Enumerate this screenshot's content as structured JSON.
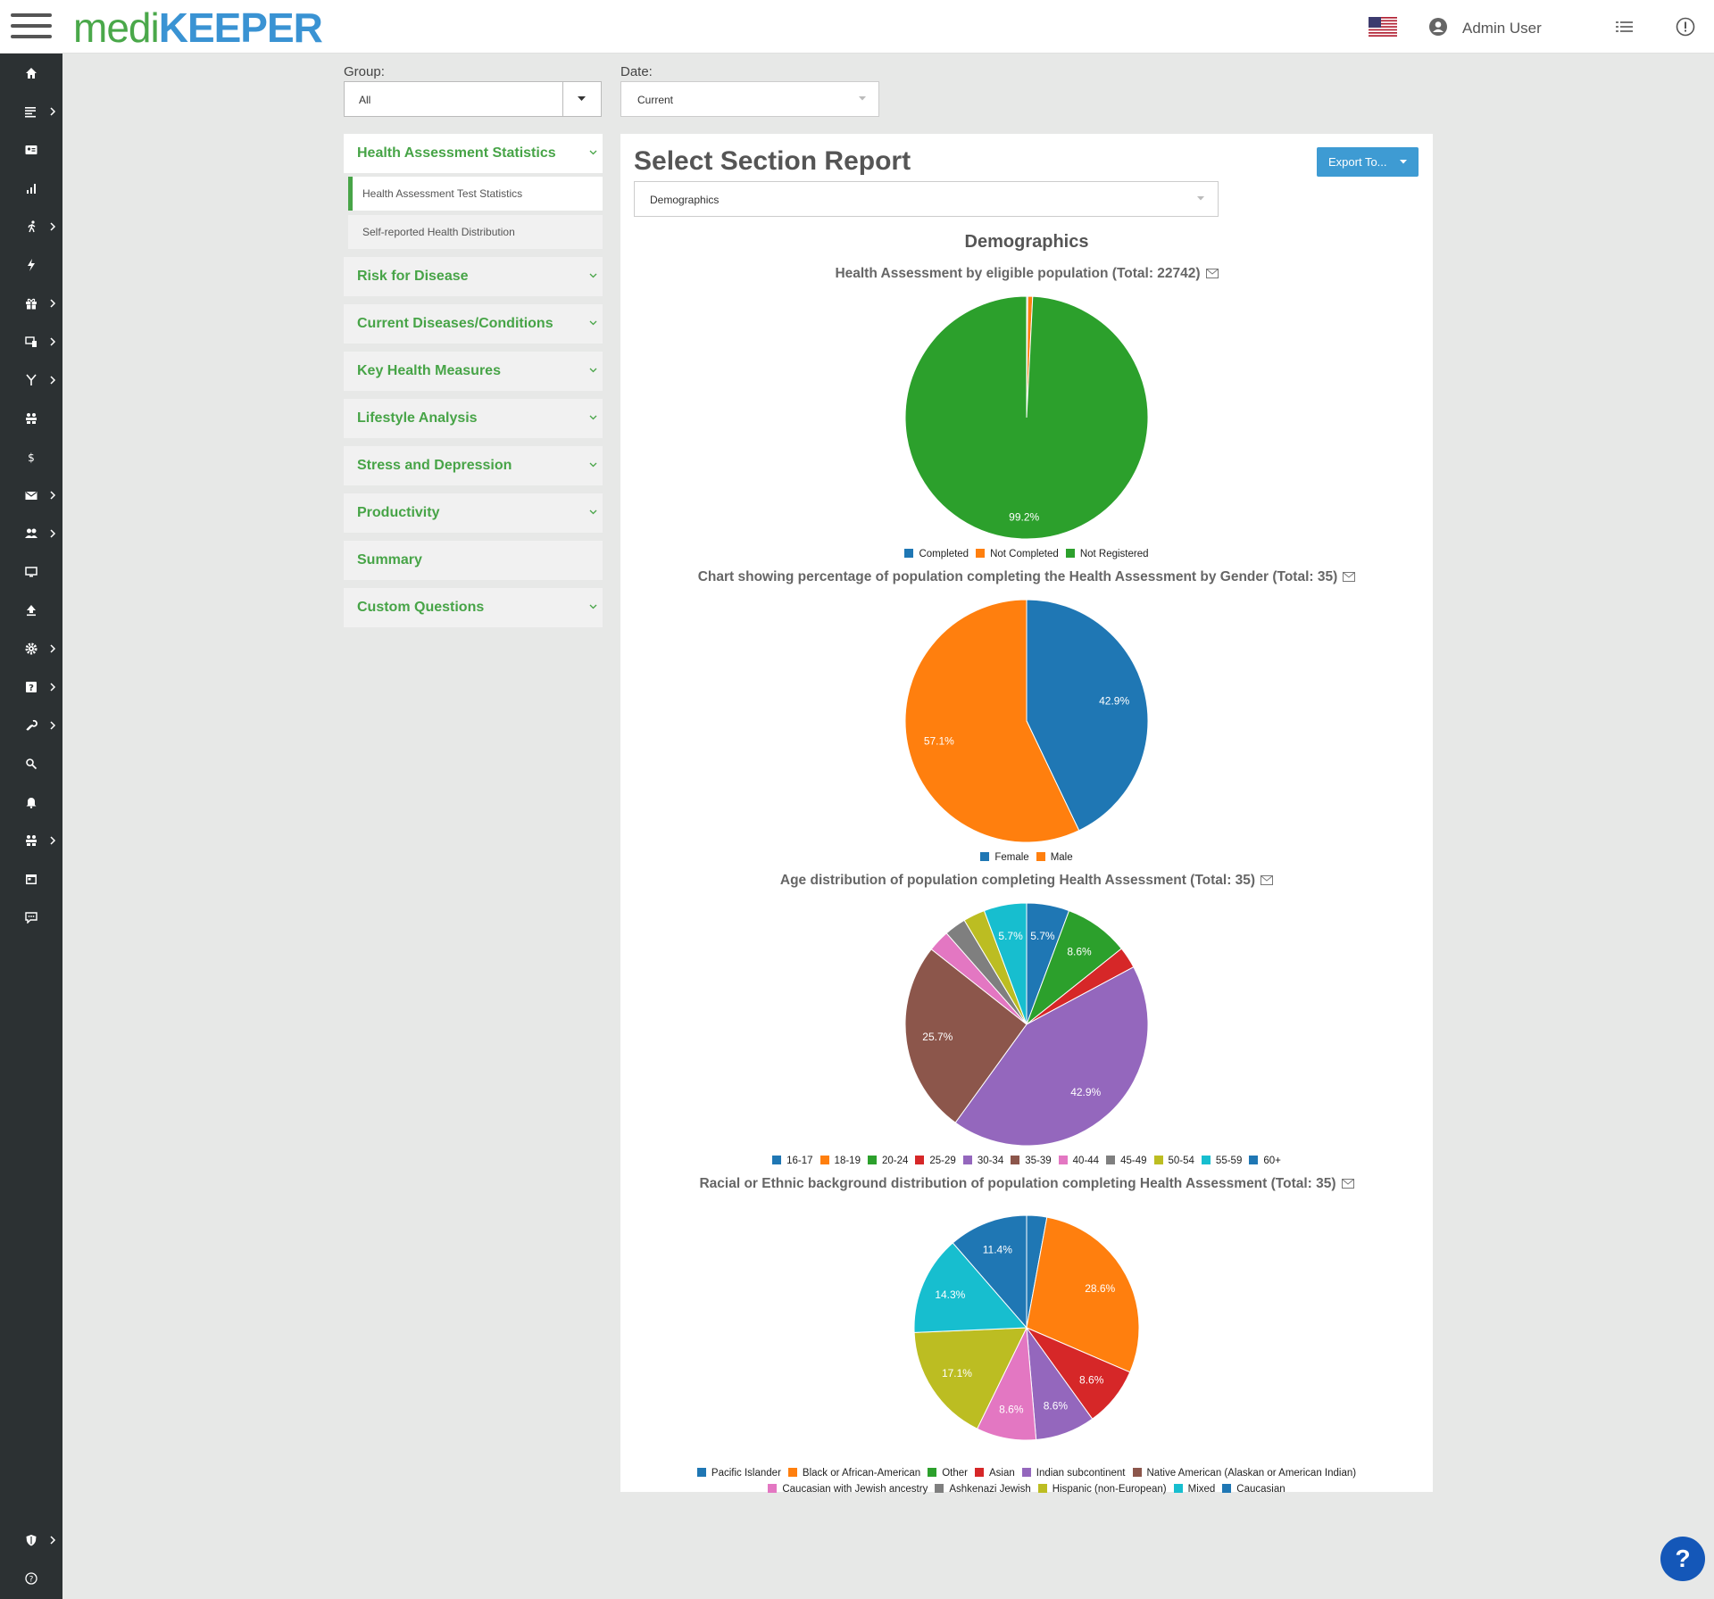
{
  "header": {
    "logo_medi": "medi",
    "logo_keeper": "KEEPER",
    "user_name": "Admin User"
  },
  "filters": {
    "group_label": "Group:",
    "group_value": "All",
    "date_label": "Date:",
    "date_value": "Current"
  },
  "leftnav": {
    "sections": [
      {
        "label": "Health Assessment Statistics",
        "expanded": true
      },
      {
        "label": "Risk for Disease"
      },
      {
        "label": "Current Diseases/Conditions"
      },
      {
        "label": "Key Health Measures"
      },
      {
        "label": "Lifestyle Analysis"
      },
      {
        "label": "Stress and Depression"
      },
      {
        "label": "Productivity"
      },
      {
        "label": "Summary"
      },
      {
        "label": "Custom Questions"
      }
    ],
    "subitems": [
      {
        "label": "Health Assessment Test Statistics",
        "active": true
      },
      {
        "label": "Self-reported Health Distribution"
      }
    ]
  },
  "panel": {
    "title": "Select Section Report",
    "export_label": "Export To...",
    "section_value": "Demographics",
    "section_heading": "Demographics"
  },
  "colors": {
    "brand_green": "#47a447",
    "brand_blue": "#3e9bd3",
    "sidebar_bg": "#2c3133"
  },
  "chart_data": [
    {
      "type": "pie",
      "title": "Health Assessment by eligible population (Total: 22742)",
      "categories": [
        "Completed",
        "Not Completed",
        "Not Registered"
      ],
      "values": [
        0.15,
        0.65,
        99.2
      ],
      "colors": [
        "#1f77b4",
        "#ff7f0e",
        "#2ca02c"
      ],
      "data_labels": [
        "",
        "",
        "99.2%"
      ]
    },
    {
      "type": "pie",
      "title": "Chart showing percentage of population completing the Health Assessment by Gender (Total: 35)",
      "categories": [
        "Female",
        "Male"
      ],
      "values": [
        42.9,
        57.1
      ],
      "colors": [
        "#1f77b4",
        "#ff7f0e"
      ],
      "data_labels": [
        "42.9%",
        "57.1%"
      ]
    },
    {
      "type": "pie",
      "title": "Age distribution of population completing Health Assessment (Total: 35)",
      "categories": [
        "16-17",
        "18-19",
        "20-24",
        "25-29",
        "30-34",
        "35-39",
        "40-44",
        "45-49",
        "50-54",
        "55-59",
        "60+"
      ],
      "values": [
        5.7,
        0,
        8.6,
        2.9,
        42.9,
        25.7,
        2.9,
        2.9,
        2.9,
        5.7,
        0
      ],
      "colors": [
        "#1f77b4",
        "#ff7f0e",
        "#2ca02c",
        "#d62728",
        "#9467bd",
        "#8c564b",
        "#e377c2",
        "#7f7f7f",
        "#bcbd22",
        "#17becf",
        "#1f77b4"
      ],
      "data_labels": [
        "5.7%",
        "",
        "8.6%",
        "",
        "42.9%",
        "25.7%",
        "",
        "",
        "",
        "5.7%",
        ""
      ]
    },
    {
      "type": "pie",
      "title": "Racial or Ethnic background distribution of population completing Health Assessment (Total: 35)",
      "categories": [
        "Pacific Islander",
        "Black or African-American",
        "Other",
        "Asian",
        "Indian subcontinent",
        "Native American (Alaskan or American Indian)",
        "Caucasian with Jewish ancestry",
        "Ashkenazi Jewish",
        "Hispanic (non-European)",
        "Mixed",
        "Caucasian"
      ],
      "values": [
        2.9,
        28.6,
        0,
        8.6,
        8.6,
        0,
        8.6,
        0,
        17.1,
        14.3,
        11.4
      ],
      "colors": [
        "#1f77b4",
        "#ff7f0e",
        "#2ca02c",
        "#d62728",
        "#9467bd",
        "#8c564b",
        "#e377c2",
        "#7f7f7f",
        "#bcbd22",
        "#17becf",
        "#1f77b4"
      ],
      "data_labels": [
        "",
        "28.6%",
        "",
        "8.6%",
        "8.6%",
        "",
        "8.6%",
        "",
        "17.1%",
        "14.3%",
        "11.4%"
      ]
    }
  ]
}
